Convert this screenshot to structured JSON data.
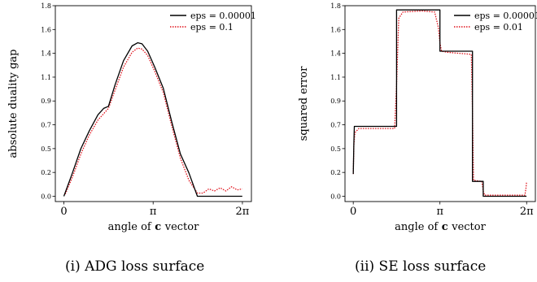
{
  "chart_data": [
    {
      "type": "line",
      "caption": "(i) ADG loss surface",
      "xlabel": "angle of c vector",
      "ylabel": "absolute duality gap",
      "xticks": [
        {
          "value": 0,
          "label": "0"
        },
        {
          "value": 3.14159,
          "label": "π"
        },
        {
          "value": 6.28318,
          "label": "2π"
        }
      ],
      "yticks": [
        "0.0",
        "0.2",
        "0.5",
        "0.7",
        "0.9",
        "1.1",
        "1.4",
        "1.6",
        "1.8"
      ],
      "xlim": [
        -0.3,
        6.6
      ],
      "ylim": [
        -0.05,
        1.8
      ],
      "legend_position": "top-right",
      "series": [
        {
          "name": "eps = 0.00001",
          "color": "#000000",
          "style": "solid",
          "x": [
            0,
            0.3,
            0.6,
            0.9,
            1.2,
            1.4,
            1.57,
            1.8,
            2.1,
            2.4,
            2.6,
            2.75,
            2.95,
            3.2,
            3.5,
            3.8,
            4.1,
            4.4,
            4.7,
            5.0,
            5.4,
            5.8,
            6.28
          ],
          "y": [
            0.0,
            0.22,
            0.45,
            0.62,
            0.77,
            0.83,
            0.85,
            1.05,
            1.28,
            1.42,
            1.45,
            1.44,
            1.37,
            1.22,
            1.02,
            0.7,
            0.4,
            0.22,
            0.0,
            0.0,
            0.0,
            0.0,
            0.0
          ]
        },
        {
          "name": "eps = 0.1",
          "color": "#e0121b",
          "style": "dotted",
          "x": [
            0.05,
            0.3,
            0.6,
            0.9,
            1.2,
            1.4,
            1.57,
            1.8,
            2.1,
            2.4,
            2.6,
            2.75,
            2.95,
            3.2,
            3.5,
            3.8,
            4.1,
            4.4,
            4.7,
            4.9,
            5.1,
            5.3,
            5.5,
            5.7,
            5.9,
            6.1,
            6.28
          ],
          "y": [
            0.02,
            0.18,
            0.4,
            0.58,
            0.72,
            0.78,
            0.83,
            1.0,
            1.22,
            1.36,
            1.4,
            1.39,
            1.33,
            1.18,
            0.98,
            0.66,
            0.36,
            0.15,
            0.03,
            0.03,
            0.07,
            0.05,
            0.08,
            0.05,
            0.09,
            0.06,
            0.07
          ]
        }
      ]
    },
    {
      "type": "line",
      "caption": "(ii) SE loss surface",
      "xlabel": "angle of c vector",
      "ylabel": "squared error",
      "xticks": [
        {
          "value": 0,
          "label": "0"
        },
        {
          "value": 3.14159,
          "label": "π"
        },
        {
          "value": 6.28318,
          "label": "2π"
        }
      ],
      "yticks": [
        "0.0",
        "0.2",
        "0.5",
        "0.7",
        "0.9",
        "1.1",
        "1.4",
        "1.6",
        "1.8"
      ],
      "xlim": [
        -0.3,
        6.6
      ],
      "ylim": [
        -0.05,
        1.8
      ],
      "legend_position": "top-right",
      "series": [
        {
          "name": "eps = 0.00001",
          "color": "#000000",
          "style": "solid",
          "x": [
            0,
            0.02,
            0.04,
            1.57,
            1.57,
            3.14,
            3.14,
            4.32,
            4.32,
            4.71,
            4.71,
            6.28
          ],
          "y": [
            0.21,
            0.5,
            0.66,
            0.66,
            1.76,
            1.76,
            1.37,
            1.37,
            0.14,
            0.14,
            0.0,
            0.0
          ]
        },
        {
          "name": "eps = 0.01",
          "color": "#e0121b",
          "style": "dotted",
          "x": [
            0,
            0.02,
            0.06,
            0.2,
            1.5,
            1.57,
            1.65,
            1.8,
            2.5,
            2.95,
            3.08,
            3.14,
            3.2,
            3.4,
            4.28,
            4.32,
            4.36,
            4.66,
            4.71,
            4.76,
            6.22,
            6.26,
            6.28
          ],
          "y": [
            0.21,
            0.48,
            0.6,
            0.64,
            0.64,
            1.05,
            1.68,
            1.74,
            1.75,
            1.74,
            1.6,
            1.45,
            1.37,
            1.36,
            1.34,
            0.8,
            0.15,
            0.14,
            0.05,
            0.01,
            0.01,
            0.08,
            0.13
          ]
        }
      ]
    }
  ]
}
